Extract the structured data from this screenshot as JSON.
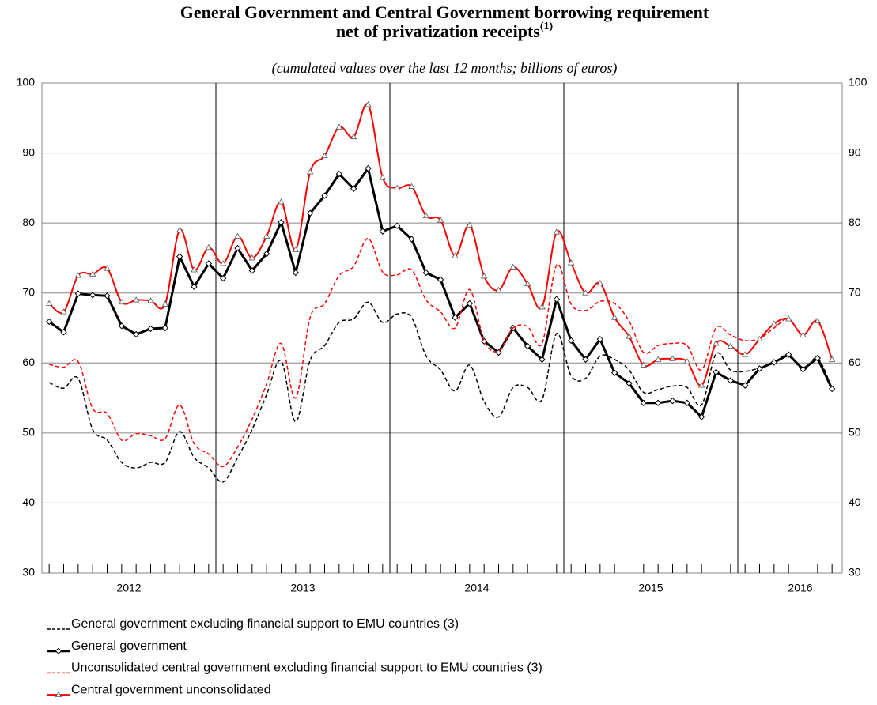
{
  "chart_data": {
    "type": "line",
    "title_lines": [
      "General Government and Central Government borrowing requirement",
      "net of privatization receipts"
    ],
    "title_note": "(1)",
    "subtitle": "(cumulated values over the last 12 months; billions of euros)",
    "categories": [
      null,
      null,
      null,
      null,
      null,
      null,
      null,
      null,
      null,
      null,
      null,
      null,
      null,
      null,
      null,
      null,
      null,
      null,
      null,
      null,
      null,
      null,
      null,
      null,
      null,
      null,
      null,
      null,
      null,
      null,
      null,
      null,
      null,
      null,
      null,
      null,
      null,
      null,
      null,
      null,
      null,
      null,
      null,
      null,
      null,
      null,
      null,
      null,
      null,
      null,
      null,
      null,
      null,
      null,
      null
    ],
    "year_labels": [
      "2012",
      "2013",
      "2014",
      "2015",
      "2016"
    ],
    "ylim": [
      30,
      100
    ],
    "yticks": [
      30,
      40,
      50,
      60,
      70,
      80,
      90,
      100
    ],
    "grid": true,
    "series": [
      {
        "name": "General government excluding financial support to EMU countries (3)",
        "color": "#000000",
        "dash": true,
        "width": 1.5,
        "marker": null,
        "values": [
          57.2,
          56.4,
          57.8,
          50.5,
          49.0,
          45.8,
          45.0,
          45.8,
          45.8,
          50.2,
          46.5,
          45.0,
          43.0,
          46.5,
          50.5,
          55.5,
          60.3,
          51.6,
          60.4,
          62.5,
          65.8,
          66.3,
          68.7,
          65.8,
          67.0,
          66.5,
          61.0,
          59.0,
          56.0,
          59.7,
          54.5,
          52.3,
          56.5,
          56.5,
          54.8,
          64.2,
          58.2,
          57.8,
          61.0,
          60.5,
          59.0,
          55.8,
          56.2,
          56.7,
          56.5,
          54.0,
          61.3,
          59.0,
          58.8,
          59.3,
          60.0,
          61.2,
          59.0,
          60.7,
          56.3
        ]
      },
      {
        "name": "General government",
        "color": "#000000",
        "dash": false,
        "width": 3,
        "marker": "diamond",
        "values": [
          65.9,
          64.4,
          69.9,
          69.7,
          69.6,
          65.3,
          64.1,
          64.9,
          65.0,
          75.2,
          70.9,
          74.2,
          72.1,
          76.4,
          73.2,
          75.6,
          80.1,
          72.9,
          81.4,
          83.9,
          87.0,
          84.9,
          87.8,
          78.8,
          79.6,
          77.7,
          72.9,
          71.9,
          66.5,
          68.5,
          63.1,
          61.5,
          65.0,
          62.4,
          60.5,
          69.1,
          63.2,
          60.5,
          63.4,
          58.6,
          57.1,
          54.3,
          54.3,
          54.6,
          54.3,
          52.3,
          58.7,
          57.5,
          56.8,
          59.2,
          60.1,
          61.2,
          59.1,
          60.7,
          56.3
        ]
      },
      {
        "name": "Unconsolidated central government excluding financial support to EMU countries (3)",
        "color": "#ff0000",
        "dash": true,
        "width": 1.5,
        "marker": null,
        "values": [
          59.8,
          59.4,
          60.2,
          53.5,
          52.8,
          49.0,
          49.9,
          49.6,
          49.2,
          54.0,
          48.5,
          47.0,
          45.2,
          48.0,
          52.0,
          57.0,
          62.8,
          55.0,
          66.5,
          68.5,
          72.5,
          73.8,
          77.8,
          73.0,
          72.6,
          73.3,
          69.0,
          67.3,
          65.0,
          70.5,
          63.2,
          61.7,
          65.0,
          65.2,
          62.8,
          74.0,
          68.4,
          67.5,
          68.8,
          68.5,
          66.0,
          61.5,
          62.5,
          62.8,
          62.5,
          59.0,
          65.0,
          64.0,
          63.2,
          63.5,
          65.0,
          66.3,
          64.0,
          66.0,
          60.5
        ]
      },
      {
        "name": "Central government unconsolidated",
        "color": "#ff0000",
        "dash": false,
        "width": 2,
        "marker": "triangle",
        "values": [
          68.5,
          67.3,
          72.5,
          72.7,
          73.5,
          68.7,
          69.0,
          68.9,
          68.4,
          79.0,
          73.3,
          76.5,
          74.2,
          78.1,
          75.0,
          78.1,
          83.0,
          76.2,
          87.3,
          89.6,
          93.7,
          92.3,
          96.9,
          86.5,
          85.0,
          85.2,
          81.0,
          80.4,
          75.3,
          79.7,
          72.4,
          70.4,
          73.7,
          71.3,
          68.0,
          78.7,
          74.3,
          70.0,
          71.4,
          66.5,
          63.8,
          59.7,
          60.5,
          60.6,
          60.2,
          56.8,
          62.8,
          62.4,
          61.2,
          63.4,
          65.6,
          66.3,
          64.0,
          66.0,
          60.5
        ]
      }
    ]
  }
}
